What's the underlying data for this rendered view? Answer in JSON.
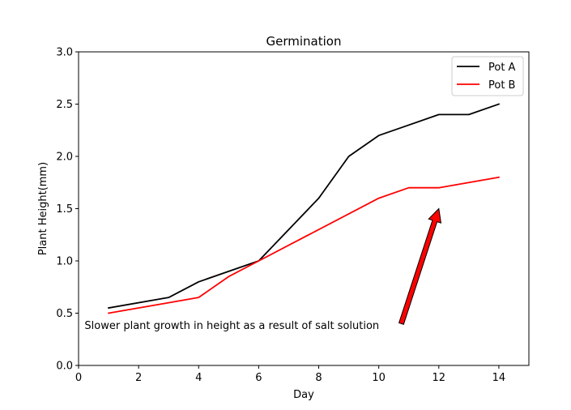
{
  "chart_data": {
    "type": "line",
    "title": "Germination",
    "xlabel": "Day",
    "ylabel": "Plant Height(mm)",
    "xlim": [
      0,
      15
    ],
    "ylim": [
      0,
      3.0
    ],
    "xticks": [
      0,
      2,
      4,
      6,
      8,
      10,
      12,
      14
    ],
    "yticks": [
      0.0,
      0.5,
      1.0,
      1.5,
      2.0,
      2.5,
      3.0
    ],
    "xtick_labels": [
      "0",
      "2",
      "4",
      "6",
      "8",
      "10",
      "12",
      "14"
    ],
    "ytick_labels": [
      "0.0",
      "0.5",
      "1.0",
      "1.5",
      "2.0",
      "2.5",
      "3.0"
    ],
    "grid": false,
    "legend_position": "top-right",
    "series": [
      {
        "name": "Pot A",
        "color": "#000000",
        "x": [
          1,
          3,
          4,
          5,
          6,
          8,
          9,
          10,
          11,
          12,
          13,
          14
        ],
        "y": [
          0.55,
          0.65,
          0.8,
          0.9,
          1.0,
          1.6,
          2.0,
          2.2,
          2.3,
          2.4,
          2.4,
          2.5
        ]
      },
      {
        "name": "Pot B",
        "color": "#ff0000",
        "x": [
          1,
          3,
          4,
          5,
          6,
          10,
          11,
          12,
          14
        ],
        "y": [
          0.5,
          0.6,
          0.65,
          0.85,
          1.0,
          1.6,
          1.7,
          1.7,
          1.8
        ]
      }
    ],
    "annotation": {
      "text": "Slower plant growth in height as a result of salt solution",
      "text_x": 0.2,
      "text_y": 0.35,
      "arrow_from": [
        10.75,
        0.4
      ],
      "arrow_to": [
        12.0,
        1.5
      ],
      "arrow_color": "#ff0000"
    }
  }
}
